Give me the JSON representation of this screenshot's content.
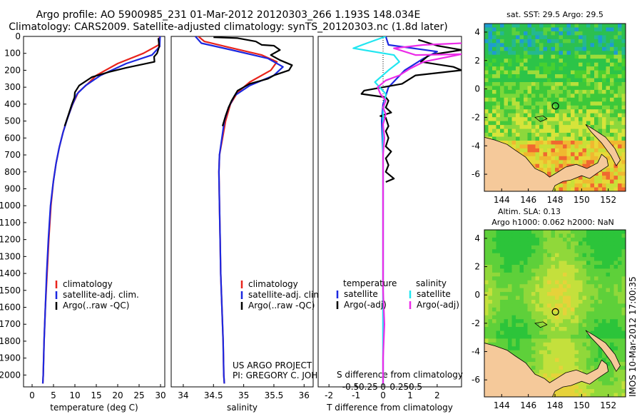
{
  "titles": {
    "line1": "Argo profile: AO 5900985_231 01-Mar-2012 20120303_266 1.193S 148.034E",
    "line2": "Climatology: CARS2009. Satellite-adjusted climatology: synTS_20120303.nc (1.8d later)"
  },
  "colors": {
    "clim": "#e8241c",
    "sat": "#1c28e0",
    "argo": "#000000",
    "sat_s": "#22e6f0",
    "argo_s": "#ec2ce8",
    "land": "#f5c99a",
    "ocean_green": "#45d040"
  },
  "chart_data": [
    {
      "id": "temperature",
      "type": "line",
      "xlabel": "temperature (deg C)",
      "ylabel": "",
      "xlim": [
        -2,
        31
      ],
      "ylim": [
        2070,
        0
      ],
      "xticks": [
        0,
        5,
        10,
        15,
        20,
        25,
        30
      ],
      "yticks": [
        0,
        100,
        200,
        300,
        400,
        500,
        600,
        700,
        800,
        900,
        1000,
        1100,
        1200,
        1300,
        1400,
        1500,
        1600,
        1700,
        1800,
        1900,
        2000
      ],
      "legend": [
        "climatology",
        "satellite-adj. clim.",
        "Argo(..raw -QC)"
      ],
      "series": [
        {
          "name": "climatology",
          "color": "clim",
          "points": [
            [
              29.8,
              0
            ],
            [
              29.6,
              50
            ],
            [
              26,
              100
            ],
            [
              20,
              160
            ],
            [
              15,
              230
            ],
            [
              13,
              280
            ],
            [
              10.8,
              330
            ],
            [
              9.5,
              400
            ],
            [
              8.3,
              480
            ],
            [
              7.3,
              560
            ],
            [
              6.4,
              650
            ],
            [
              5.6,
              750
            ],
            [
              5.0,
              850
            ],
            [
              4.4,
              1000
            ],
            [
              3.9,
              1200
            ],
            [
              3.5,
              1400
            ],
            [
              3.1,
              1600
            ],
            [
              2.8,
              1800
            ],
            [
              2.6,
              2000
            ],
            [
              2.5,
              2050
            ]
          ]
        },
        {
          "name": "satellite-adj. clim.",
          "color": "sat",
          "points": [
            [
              29.9,
              0
            ],
            [
              29.8,
              60
            ],
            [
              28,
              110
            ],
            [
              22,
              160
            ],
            [
              16,
              230
            ],
            [
              12.5,
              290
            ],
            [
              10.5,
              340
            ],
            [
              9.3,
              410
            ],
            [
              8.2,
              490
            ],
            [
              7.2,
              570
            ],
            [
              6.3,
              660
            ],
            [
              5.6,
              750
            ],
            [
              4.9,
              870
            ],
            [
              4.3,
              1000
            ],
            [
              3.8,
              1200
            ],
            [
              3.4,
              1400
            ],
            [
              3.1,
              1600
            ],
            [
              2.8,
              1800
            ],
            [
              2.6,
              2000
            ],
            [
              2.5,
              2050
            ]
          ]
        },
        {
          "name": "Argo(..raw -QC)",
          "color": "argo",
          "points": [
            [
              29.5,
              10
            ],
            [
              29.7,
              60
            ],
            [
              29.2,
              100
            ],
            [
              28.5,
              120
            ],
            [
              28.6,
              150
            ],
            [
              22,
              185
            ],
            [
              18,
              210
            ],
            [
              14,
              240
            ],
            [
              11,
              290
            ],
            [
              10,
              330
            ],
            [
              9.9,
              360
            ],
            [
              9.3,
              400
            ],
            [
              8.4,
              470
            ],
            [
              7.6,
              530
            ]
          ]
        }
      ]
    },
    {
      "id": "salinity",
      "type": "line",
      "xlabel": "salinity",
      "ylabel": "",
      "xlim": [
        33.8,
        36.15
      ],
      "ylim": [
        2070,
        0
      ],
      "xticks": [
        34,
        34.5,
        35,
        35.5,
        36
      ],
      "legend": [
        "climatology",
        "satellite-adj. clim.",
        "Argo(..raw -QC)"
      ],
      "annotation": [
        "US ARGO PROJECT",
        "PI: GREGORY C. JOHNSON"
      ],
      "series": [
        {
          "name": "climatology",
          "color": "clim",
          "points": [
            [
              34.25,
              0
            ],
            [
              34.35,
              30
            ],
            [
              34.7,
              60
            ],
            [
              35.3,
              110
            ],
            [
              35.55,
              150
            ],
            [
              35.45,
              200
            ],
            [
              35.1,
              270
            ],
            [
              34.9,
              330
            ],
            [
              34.78,
              400
            ],
            [
              34.7,
              500
            ],
            [
              34.65,
              600
            ],
            [
              34.6,
              700
            ],
            [
              34.59,
              800
            ],
            [
              34.6,
              1000
            ],
            [
              34.61,
              1200
            ],
            [
              34.62,
              1400
            ],
            [
              34.64,
              1600
            ],
            [
              34.66,
              1800
            ],
            [
              34.67,
              2000
            ],
            [
              34.68,
              2050
            ]
          ]
        },
        {
          "name": "satellite-adj. clim.",
          "color": "sat",
          "points": [
            [
              34.2,
              0
            ],
            [
              34.3,
              40
            ],
            [
              34.8,
              80
            ],
            [
              35.4,
              130
            ],
            [
              35.65,
              180
            ],
            [
              35.5,
              230
            ],
            [
              35.1,
              290
            ],
            [
              34.85,
              350
            ],
            [
              34.75,
              420
            ],
            [
              34.68,
              500
            ],
            [
              34.64,
              600
            ],
            [
              34.6,
              700
            ],
            [
              34.59,
              800
            ],
            [
              34.6,
              1000
            ],
            [
              34.61,
              1200
            ],
            [
              34.62,
              1400
            ],
            [
              34.64,
              1600
            ],
            [
              34.66,
              1800
            ],
            [
              34.67,
              2000
            ],
            [
              34.68,
              2050
            ]
          ]
        },
        {
          "name": "Argo(..raw -QC)",
          "color": "argo",
          "points": [
            [
              34.5,
              5
            ],
            [
              34.9,
              10
            ],
            [
              35.2,
              30
            ],
            [
              35.3,
              50
            ],
            [
              35.5,
              55
            ],
            [
              35.6,
              80
            ],
            [
              35.5,
              100
            ],
            [
              35.45,
              110
            ],
            [
              35.6,
              140
            ],
            [
              35.8,
              170
            ],
            [
              35.75,
              200
            ],
            [
              35.5,
              230
            ],
            [
              35.4,
              250
            ],
            [
              35.1,
              280
            ],
            [
              34.9,
              320
            ],
            [
              34.8,
              380
            ],
            [
              34.75,
              420
            ],
            [
              34.7,
              470
            ],
            [
              34.65,
              530
            ]
          ]
        }
      ]
    },
    {
      "id": "difference",
      "type": "line",
      "xlabel": "T difference from climatology",
      "xlabel2": "S difference from climatology",
      "xlim": [
        -2.4,
        2.9
      ],
      "ylim": [
        2070,
        0
      ],
      "xticks": [
        -2,
        -1,
        0,
        1,
        2
      ],
      "xticks2": [
        -0.5,
        -0.25,
        0,
        0.25,
        0.5
      ],
      "legend_headers": [
        "temperature",
        "salinity"
      ],
      "legend": [
        "satellite",
        "Argo(-adj)",
        "satellite",
        "Argo(-adj)"
      ],
      "series": [
        {
          "name": "satellite",
          "kind": "temperature",
          "color": "sat",
          "points": [
            [
              0.1,
              0
            ],
            [
              0.2,
              50
            ],
            [
              2,
              90
            ],
            [
              1.5,
              130
            ],
            [
              0.8,
              200
            ],
            [
              0.2,
              300
            ],
            [
              0,
              400
            ],
            [
              -0.05,
              500
            ],
            [
              0,
              700
            ],
            [
              0,
              1000
            ],
            [
              0,
              1500
            ],
            [
              0,
              2050
            ]
          ]
        },
        {
          "name": "Argo(-adj)",
          "kind": "temperature",
          "color": "argo",
          "points": [
            [
              1.3,
              20
            ],
            [
              2,
              55
            ],
            [
              2.9,
              80
            ],
            [
              1.7,
              110
            ],
            [
              1.4,
              150
            ],
            [
              2.6,
              180
            ],
            [
              2.9,
              200
            ],
            [
              1.2,
              230
            ],
            [
              0.7,
              280
            ],
            [
              -0.7,
              320
            ],
            [
              -0.8,
              340
            ],
            [
              0.1,
              360
            ],
            [
              0.2,
              380
            ],
            [
              0.1,
              420
            ],
            [
              0.3,
              450
            ],
            [
              -0.1,
              470
            ],
            [
              0.1,
              480
            ],
            [
              0.2,
              530
            ],
            [
              0.1,
              560
            ],
            [
              0.2,
              600
            ],
            [
              0.1,
              650
            ],
            [
              0.3,
              680
            ],
            [
              0.1,
              720
            ],
            [
              0.2,
              760
            ],
            [
              0.1,
              800
            ],
            [
              0.4,
              840
            ],
            [
              0.1,
              860
            ]
          ]
        },
        {
          "name": "satellite",
          "kind": "salinity",
          "color": "sat_s",
          "points": [
            [
              0.1,
              0
            ],
            [
              -0.6,
              40
            ],
            [
              -1.1,
              70
            ],
            [
              0.4,
              110
            ],
            [
              0.6,
              150
            ],
            [
              0.2,
              200
            ],
            [
              -0.3,
              270
            ],
            [
              0.1,
              340
            ],
            [
              0,
              450
            ],
            [
              0,
              600
            ],
            [
              0,
              800
            ],
            [
              0,
              1200
            ],
            [
              0,
              1600
            ],
            [
              0,
              2050
            ]
          ]
        },
        {
          "name": "Argo(-adj)",
          "kind": "salinity",
          "color": "argo_s",
          "points": [
            [
              2.9,
              40
            ],
            [
              1.5,
              50
            ],
            [
              0.4,
              70
            ],
            [
              0.8,
              90
            ],
            [
              1.2,
              110
            ],
            [
              2.9,
              105
            ],
            [
              1.5,
              150
            ],
            [
              1.0,
              190
            ],
            [
              0.6,
              230
            ],
            [
              0.1,
              260
            ],
            [
              -0.2,
              300
            ],
            [
              -0.1,
              340
            ],
            [
              0.1,
              380
            ],
            [
              0,
              420
            ],
            [
              0.1,
              460
            ],
            [
              0,
              520
            ],
            [
              0.05,
              600
            ],
            [
              0,
              700
            ],
            [
              0,
              900
            ],
            [
              0,
              1100
            ],
            [
              0,
              1300
            ],
            [
              0,
              1500
            ],
            [
              0.05,
              1700
            ],
            [
              0,
              1900
            ],
            [
              0,
              2050
            ]
          ]
        }
      ]
    },
    {
      "id": "sst_map",
      "type": "heatmap",
      "title": "sat. SST: 29.5 Argo: 29.5",
      "xlim": [
        142.7,
        153.3
      ],
      "ylim": [
        -7.2,
        4.6
      ],
      "xticks": [
        144,
        146,
        148,
        150,
        152
      ],
      "yticks": [
        -6,
        -4,
        -2,
        0,
        2,
        4
      ],
      "marker": {
        "lon": 148.034,
        "lat": -1.193
      }
    },
    {
      "id": "sla_map",
      "type": "heatmap",
      "title": "Altim. SLA: 0.13",
      "subtitle": "Argo h1000: 0.062 h2000: NaN",
      "xlim": [
        142.7,
        153.3
      ],
      "ylim": [
        -7.2,
        4.6
      ],
      "xticks": [
        144,
        146,
        148,
        150,
        152
      ],
      "yticks": [
        -6,
        -4,
        -2,
        0,
        2,
        4
      ],
      "marker": {
        "lon": 148.034,
        "lat": -1.193
      }
    }
  ],
  "side_label": "IMOS 10-Mar-2012 17:00:35"
}
